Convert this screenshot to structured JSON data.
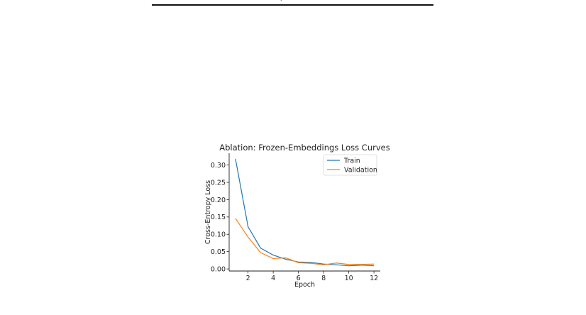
{
  "page": {
    "top_fragment": "p"
  },
  "chart_data": {
    "type": "line",
    "title": "Ablation: Frozen-Embeddings Loss Curves",
    "xlabel": "Epoch",
    "ylabel": "Cross-Entropy Loss",
    "xlim": [
      0.5,
      12.5
    ],
    "ylim": [
      -0.006,
      0.334
    ],
    "xticks": [
      2,
      4,
      6,
      8,
      10,
      12
    ],
    "yticks": [
      0.0,
      0.05,
      0.1,
      0.15,
      0.2,
      0.25,
      0.3
    ],
    "ytick_labels": [
      "0.00",
      "0.05",
      "0.10",
      "0.15",
      "0.20",
      "0.25",
      "0.30"
    ],
    "grid": false,
    "legend": "top-right",
    "x": [
      1,
      2,
      3,
      4,
      5,
      6,
      7,
      8,
      9,
      10,
      11,
      12
    ],
    "series": [
      {
        "name": "Train",
        "color": "#1f77b4",
        "values": [
          0.318,
          0.122,
          0.06,
          0.04,
          0.028,
          0.02,
          0.019,
          0.014,
          0.012,
          0.009,
          0.011,
          0.009
        ]
      },
      {
        "name": "Validation",
        "color": "#ff7f0e",
        "values": [
          0.146,
          0.092,
          0.047,
          0.03,
          0.032,
          0.018,
          0.016,
          0.012,
          0.017,
          0.013,
          0.013,
          0.014
        ]
      }
    ]
  }
}
